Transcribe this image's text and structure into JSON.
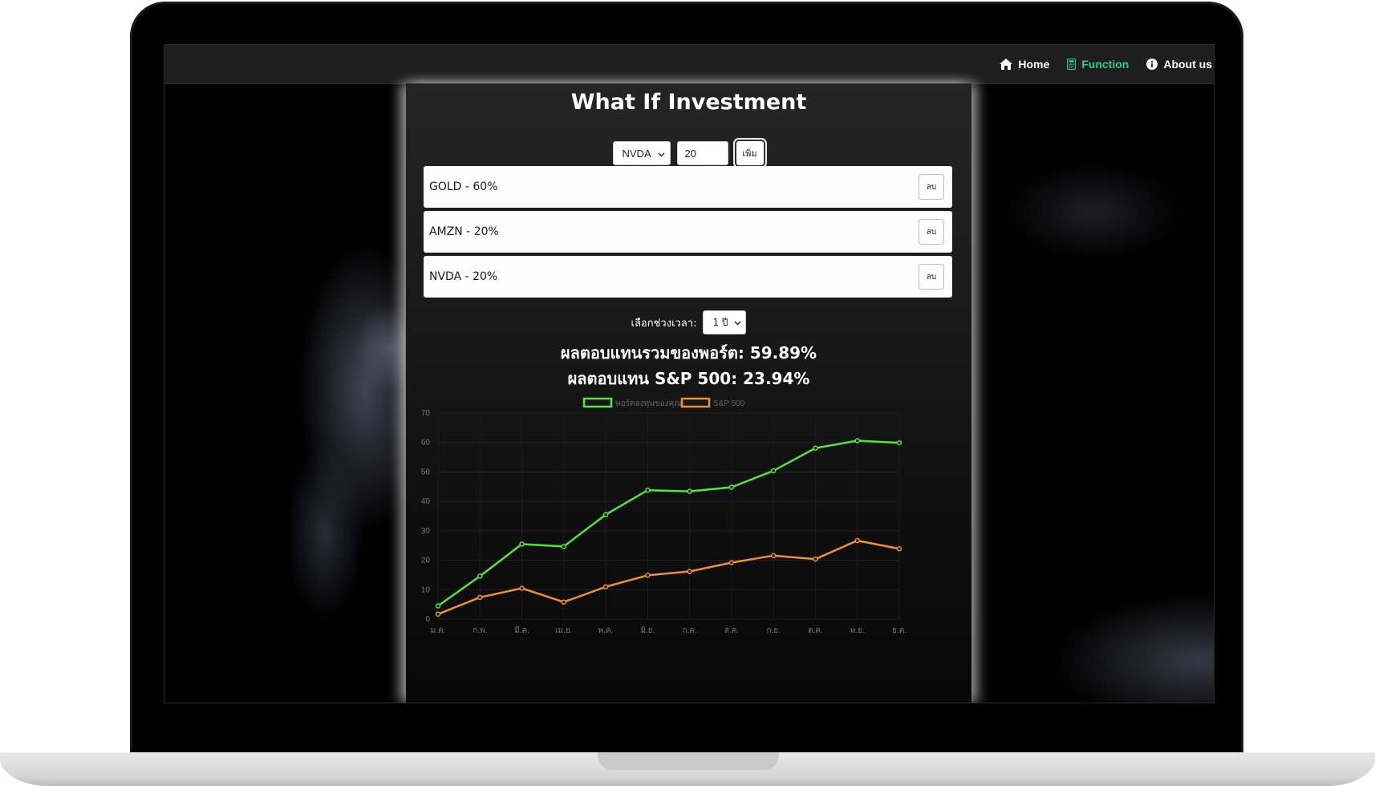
{
  "nav": {
    "items": [
      {
        "label": "Home",
        "icon": "home-icon",
        "active": false
      },
      {
        "label": "Function",
        "icon": "calculator-icon",
        "active": true
      },
      {
        "label": "About us",
        "icon": "info-icon",
        "active": false
      }
    ],
    "active_color": "#2ecc8a"
  },
  "page": {
    "title": "What If Investment"
  },
  "form": {
    "symbol_selected": "NVDA",
    "percent_value": "20",
    "add_label": "เพิ่ม"
  },
  "holdings": [
    {
      "label": "GOLD - 60%",
      "delete_label": "ลบ"
    },
    {
      "label": "AMZN - 20%",
      "delete_label": "ลบ"
    },
    {
      "label": "NVDA - 20%",
      "delete_label": "ลบ"
    }
  ],
  "period": {
    "label": "เลือกช่วงเวลา:",
    "selected": "1 ปี"
  },
  "results": {
    "portfolio": "ผลตอบแทนรวมของพอร์ต: 59.89%",
    "sp500": "ผลตอบแทน S&P 500: 23.94%"
  },
  "chart_data": {
    "type": "line",
    "categories": [
      "ม.ค.",
      "ก.พ.",
      "มี.ค.",
      "เม.ย.",
      "พ.ค.",
      "มิ.ย.",
      "ก.ค.",
      "ส.ค.",
      "ก.ย.",
      "ต.ค.",
      "พ.ย.",
      "ธ.ค."
    ],
    "series": [
      {
        "name": "พอร์ตลงทุนของคุณ",
        "color": "#56e63a",
        "values": [
          4.5,
          14.6,
          25.5,
          24.7,
          35.5,
          43.8,
          43.4,
          44.8,
          50.4,
          58.1,
          60.6,
          59.9
        ]
      },
      {
        "name": "S&P 500",
        "color": "#f0902e",
        "values": [
          1.7,
          7.4,
          10.5,
          5.8,
          11.0,
          14.9,
          16.2,
          19.2,
          21.6,
          20.4,
          26.7,
          23.9
        ]
      }
    ],
    "ylim": [
      0,
      70
    ],
    "yticks": [
      0,
      10,
      20,
      30,
      40,
      50,
      60,
      70
    ],
    "legend": "top-center",
    "grid": true
  }
}
